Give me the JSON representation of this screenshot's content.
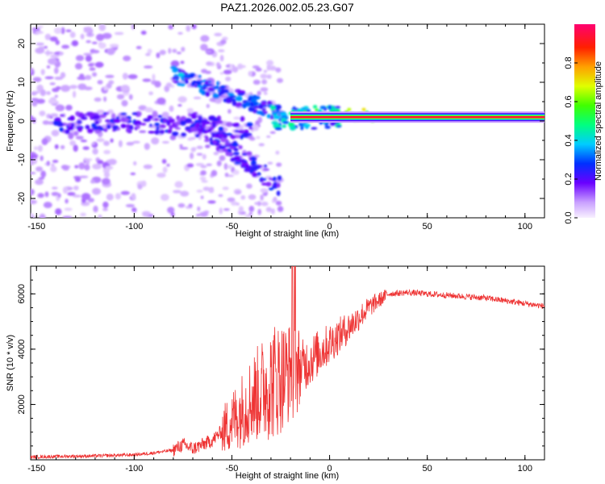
{
  "chart_data": [
    {
      "type": "heatmap",
      "title": "PAZ1.2026.002.05.23.G07",
      "xlabel": "Height of straight line (km)",
      "ylabel": "Frequency (Hz)",
      "xlim": [
        -153,
        110
      ],
      "ylim": [
        -25,
        25
      ],
      "xticks": [
        -150,
        -100,
        -50,
        0,
        50,
        100
      ],
      "yticks": [
        -20,
        -10,
        0,
        10,
        20
      ],
      "colorbar": {
        "label": "Normalized spectral amplitude",
        "range": [
          0,
          1
        ],
        "ticks": [
          0.0,
          0.2,
          0.4,
          0.6,
          0.8
        ]
      },
      "features": [
        {
          "name": "carrier-line",
          "x_range": [
            -20,
            110
          ],
          "frequency_hz": 1,
          "amplitude": 0.95
        },
        {
          "name": "upper-branch",
          "x_from": -80,
          "x_to": -25,
          "freq_from": 12,
          "freq_to": 2
        },
        {
          "name": "lower-branch",
          "x_from": -70,
          "x_to": -25,
          "freq_from": 0,
          "freq_to": -17
        },
        {
          "name": "left-scatter",
          "x_range": [
            -153,
            -80
          ],
          "freq_range": [
            -25,
            25
          ]
        }
      ]
    },
    {
      "type": "line",
      "xlabel": "Height of straight line (km)",
      "ylabel": "SNR (10 * v/v)",
      "xlim": [
        -153,
        110
      ],
      "ylim": [
        0,
        7000
      ],
      "xticks": [
        -150,
        -100,
        -50,
        0,
        50,
        100
      ],
      "yticks": [
        2000,
        4000,
        6000
      ],
      "color": "#ee3333",
      "series": [
        {
          "name": "SNR",
          "x": [
            -153,
            -140,
            -120,
            -100,
            -90,
            -80,
            -75,
            -70,
            -60,
            -50,
            -40,
            -30,
            -25,
            -20,
            -15,
            -10,
            0,
            10,
            20,
            30,
            40,
            50,
            60,
            70,
            80,
            90,
            100,
            110
          ],
          "values": [
            100,
            120,
            140,
            180,
            250,
            350,
            550,
            400,
            700,
            1400,
            2200,
            2800,
            3000,
            3200,
            3300,
            3600,
            4200,
            4800,
            5500,
            6000,
            6050,
            6000,
            5950,
            5900,
            5850,
            5750,
            5650,
            5550
          ]
        }
      ]
    }
  ]
}
